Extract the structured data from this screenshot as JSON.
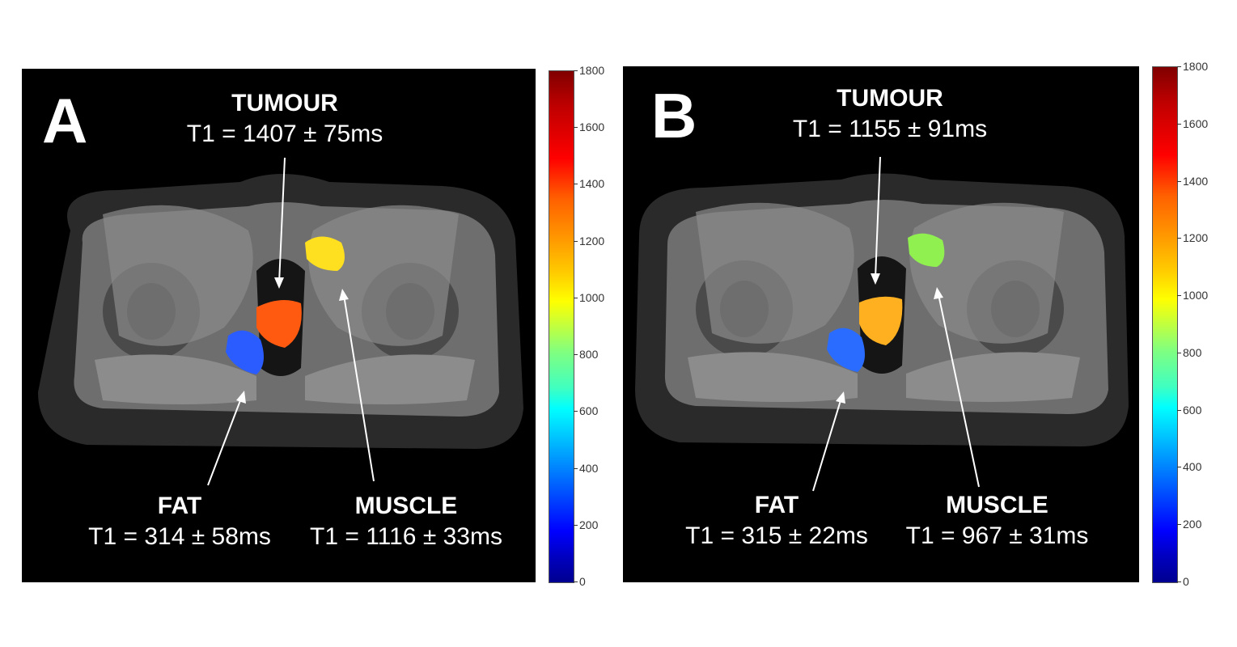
{
  "panels": [
    {
      "letter": "A",
      "tumour": {
        "name": "TUMOUR",
        "value": "T1 = 1407 ± 75ms",
        "color": "#ff5a10"
      },
      "fat": {
        "name": "FAT",
        "value": "T1 = 314 ± 58ms",
        "color": "#2a5cff"
      },
      "muscle": {
        "name": "MUSCLE",
        "value": "T1 = 1116 ± 33ms",
        "color": "#ffe020"
      }
    },
    {
      "letter": "B",
      "tumour": {
        "name": "TUMOUR",
        "value": "T1 = 1155 ± 91ms",
        "color": "#ffb020"
      },
      "fat": {
        "name": "FAT",
        "value": "T1 = 315 ± 22ms",
        "color": "#2a6cff"
      },
      "muscle": {
        "name": "MUSCLE",
        "value": "T1 = 967 ± 31ms",
        "color": "#90f050"
      }
    }
  ],
  "colorbar": {
    "ticks": [
      "1800",
      "1600",
      "1400",
      "1200",
      "1000",
      "800",
      "600",
      "400",
      "200",
      "0"
    ],
    "range": [
      0,
      1800
    ],
    "colormap": "jet"
  }
}
